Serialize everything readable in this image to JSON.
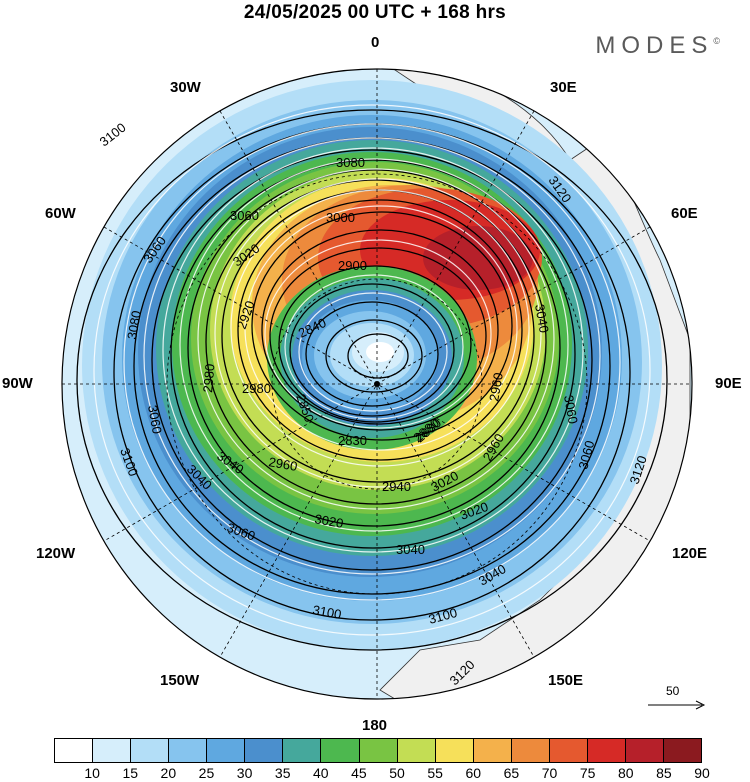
{
  "title": "24/05/2025  00 UTC  + 168 hrs",
  "brand": "MODES",
  "brand_mark": "©",
  "longitude_labels": {
    "top": "0",
    "ne": "30E",
    "e60": "60E",
    "east": "90E",
    "e120": "120E",
    "e150": "150E",
    "bottom": "180",
    "w150": "150W",
    "w120": "120W",
    "west": "90W",
    "w60": "60W",
    "nw": "30W"
  },
  "reference_vector": {
    "label": "50"
  },
  "colorbar": {
    "colors": [
      "#ffffff",
      "#d6eefb",
      "#b3def7",
      "#86c4ee",
      "#5fa8e0",
      "#4b8fcd",
      "#45a89c",
      "#4db84f",
      "#79c443",
      "#c3dd54",
      "#f6e05a",
      "#f4b14b",
      "#ed8a3c",
      "#e5592f",
      "#d62a26",
      "#b6202a",
      "#8b1a1f"
    ],
    "ticks": [
      "10",
      "15",
      "20",
      "25",
      "30",
      "35",
      "40",
      "45",
      "50",
      "55",
      "60",
      "65",
      "70",
      "75",
      "80",
      "85",
      "90"
    ]
  },
  "contour_labels": {
    "outer": [
      "3100",
      "3120",
      "3100",
      "3100",
      "3120",
      "3100",
      "3120"
    ],
    "ring1": [
      "3080",
      "3080",
      "3060",
      "3060",
      "3060",
      "3040",
      "3060"
    ],
    "ring2": [
      "3060",
      "3060",
      "3040",
      "3040",
      "3040",
      "3020",
      "3020"
    ],
    "ring3": [
      "3000",
      "2980",
      "3020",
      "3040",
      "2960",
      "3020",
      "2980"
    ],
    "ring4": [
      "2900",
      "2920",
      "2960",
      "2940",
      "2960",
      "2880"
    ],
    "inner": [
      "2840",
      "2850",
      "2830",
      "2880"
    ]
  },
  "geo_labels": {
    "pole_marker": "pole"
  }
}
